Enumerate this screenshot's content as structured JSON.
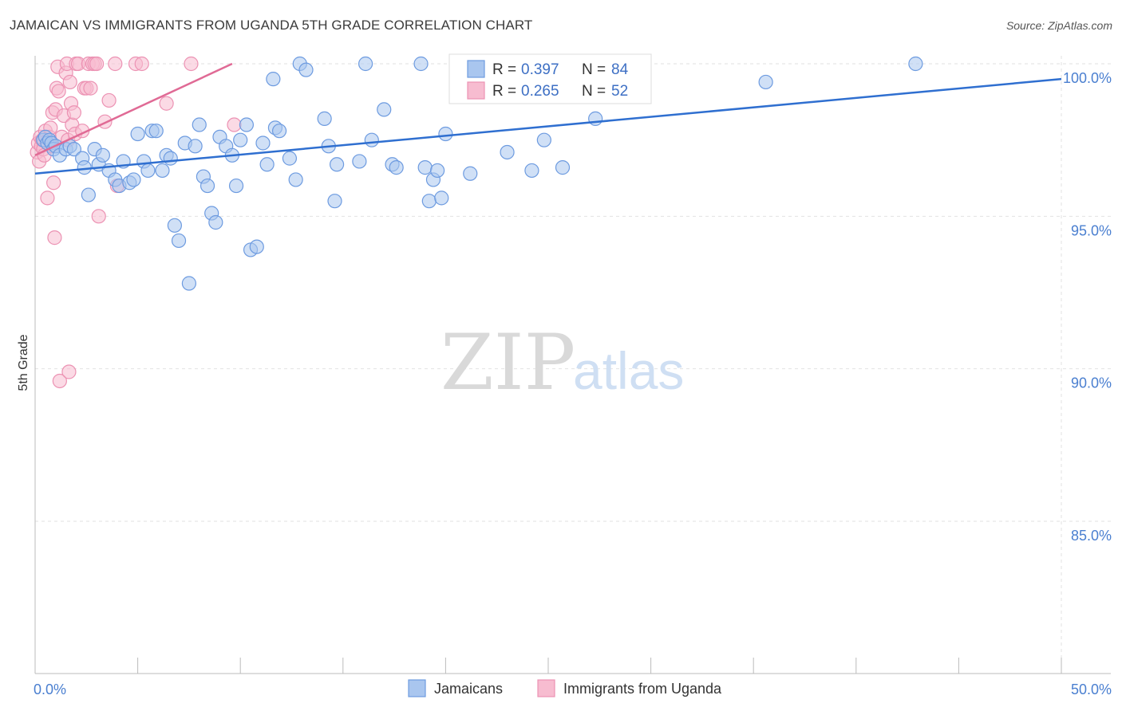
{
  "title": "JAMAICAN VS IMMIGRANTS FROM UGANDA 5TH GRADE CORRELATION CHART",
  "source": "Source: ZipAtlas.com",
  "watermark": {
    "zip": "ZIP",
    "atlas": "atlas"
  },
  "legend": {
    "r_label": "R =",
    "n_label": "N =",
    "series": [
      {
        "r": "0.397",
        "n": "84"
      },
      {
        "r": "0.265",
        "n": "52"
      }
    ]
  },
  "bottom_legend": [
    "Jamaicans",
    "Immigrants from Uganda"
  ],
  "chart_data": {
    "type": "scatter",
    "title": "JAMAICAN VS IMMIGRANTS FROM UGANDA 5TH GRADE CORRELATION CHART",
    "xlabel": "",
    "ylabel": "5th Grade",
    "xlim": [
      0,
      50
    ],
    "ylim": [
      80.5,
      100.5
    ],
    "x_tick_labels": [
      {
        "value": 0,
        "label": "0.0%"
      },
      {
        "value": 50,
        "label": "50.0%"
      }
    ],
    "x_minor_ticks": [
      0,
      5,
      10,
      15,
      20,
      25,
      30,
      35,
      40,
      45,
      50
    ],
    "y_ticks": [
      {
        "value": 100,
        "label": "100.0%"
      },
      {
        "value": 95,
        "label": "95.0%"
      },
      {
        "value": 90,
        "label": "90.0%"
      },
      {
        "value": 85,
        "label": "85.0%"
      }
    ],
    "grid": true,
    "colors": {
      "jamaicans_fill": "#a9c6ef",
      "jamaicans_stroke": "#6d9be0",
      "jamaicans_line": "#2f6fd0",
      "uganda_fill": "#f7bcd0",
      "uganda_stroke": "#ec92b3",
      "uganda_line": "#e06a95",
      "tick_label": "#4a7fd0",
      "grid": "#e2e2e2"
    },
    "series": [
      {
        "name": "Jamaicans",
        "r": 0.397,
        "n": 84,
        "trend": {
          "x": [
            0,
            50
          ],
          "y": [
            96.4,
            99.5
          ]
        },
        "points": [
          [
            0.4,
            97.5
          ],
          [
            0.5,
            97.6
          ],
          [
            0.6,
            97.4
          ],
          [
            0.7,
            97.5
          ],
          [
            0.8,
            97.4
          ],
          [
            0.9,
            97.2
          ],
          [
            1.0,
            97.3
          ],
          [
            1.2,
            97.0
          ],
          [
            1.5,
            97.2
          ],
          [
            1.7,
            97.3
          ],
          [
            1.9,
            97.2
          ],
          [
            2.3,
            96.9
          ],
          [
            2.4,
            96.6
          ],
          [
            2.6,
            95.7
          ],
          [
            2.9,
            97.2
          ],
          [
            3.1,
            96.7
          ],
          [
            3.3,
            97.0
          ],
          [
            3.6,
            96.5
          ],
          [
            3.9,
            96.2
          ],
          [
            4.1,
            96.0
          ],
          [
            4.3,
            96.8
          ],
          [
            4.6,
            96.1
          ],
          [
            4.8,
            96.2
          ],
          [
            5.0,
            97.7
          ],
          [
            5.3,
            96.8
          ],
          [
            5.5,
            96.5
          ],
          [
            5.7,
            97.8
          ],
          [
            5.9,
            97.8
          ],
          [
            6.2,
            96.5
          ],
          [
            6.4,
            97.0
          ],
          [
            6.6,
            96.9
          ],
          [
            6.8,
            94.7
          ],
          [
            7.0,
            94.2
          ],
          [
            7.3,
            97.4
          ],
          [
            7.5,
            92.8
          ],
          [
            7.8,
            97.3
          ],
          [
            8.0,
            98.0
          ],
          [
            8.2,
            96.3
          ],
          [
            8.4,
            96.0
          ],
          [
            8.6,
            95.1
          ],
          [
            8.8,
            94.8
          ],
          [
            9.0,
            97.6
          ],
          [
            9.3,
            97.3
          ],
          [
            9.6,
            97.0
          ],
          [
            9.8,
            96.0
          ],
          [
            10.0,
            97.5
          ],
          [
            10.3,
            98.0
          ],
          [
            10.5,
            93.9
          ],
          [
            10.8,
            94.0
          ],
          [
            11.1,
            97.4
          ],
          [
            11.3,
            96.7
          ],
          [
            11.6,
            99.5
          ],
          [
            11.7,
            97.9
          ],
          [
            11.9,
            97.8
          ],
          [
            12.4,
            96.9
          ],
          [
            12.7,
            96.2
          ],
          [
            12.9,
            100.0
          ],
          [
            13.2,
            99.8
          ],
          [
            14.1,
            98.2
          ],
          [
            14.3,
            97.3
          ],
          [
            14.6,
            95.5
          ],
          [
            14.7,
            96.7
          ],
          [
            15.8,
            96.8
          ],
          [
            16.1,
            100.0
          ],
          [
            16.4,
            97.5
          ],
          [
            17.0,
            98.5
          ],
          [
            17.4,
            96.7
          ],
          [
            17.6,
            96.6
          ],
          [
            18.8,
            100.0
          ],
          [
            19.0,
            96.6
          ],
          [
            19.2,
            95.5
          ],
          [
            19.4,
            96.2
          ],
          [
            19.6,
            96.5
          ],
          [
            19.8,
            95.6
          ],
          [
            20.0,
            97.7
          ],
          [
            21.2,
            96.4
          ],
          [
            23.0,
            97.1
          ],
          [
            24.2,
            96.5
          ],
          [
            24.8,
            97.5
          ],
          [
            25.7,
            96.6
          ],
          [
            26.4,
            100.0
          ],
          [
            27.3,
            98.2
          ],
          [
            35.6,
            99.4
          ],
          [
            42.9,
            100.0
          ]
        ]
      },
      {
        "name": "Immigrants from Uganda",
        "r": 0.265,
        "n": 52,
        "trend": {
          "x": [
            0,
            9.6
          ],
          "y": [
            97.0,
            100.0
          ]
        },
        "points": [
          [
            0.1,
            97.1
          ],
          [
            0.15,
            97.4
          ],
          [
            0.2,
            96.8
          ],
          [
            0.25,
            97.6
          ],
          [
            0.3,
            97.3
          ],
          [
            0.35,
            97.5
          ],
          [
            0.4,
            97.2
          ],
          [
            0.45,
            97.0
          ],
          [
            0.5,
            97.8
          ],
          [
            0.6,
            95.6
          ],
          [
            0.7,
            97.6
          ],
          [
            0.75,
            97.9
          ],
          [
            0.8,
            97.3
          ],
          [
            0.85,
            98.4
          ],
          [
            0.9,
            96.1
          ],
          [
            0.95,
            94.3
          ],
          [
            1.0,
            98.5
          ],
          [
            1.05,
            99.2
          ],
          [
            1.1,
            99.9
          ],
          [
            1.15,
            99.1
          ],
          [
            1.2,
            89.6
          ],
          [
            1.3,
            97.6
          ],
          [
            1.4,
            98.3
          ],
          [
            1.5,
            99.7
          ],
          [
            1.55,
            100.0
          ],
          [
            1.6,
            97.5
          ],
          [
            1.65,
            89.9
          ],
          [
            1.7,
            99.4
          ],
          [
            1.75,
            98.7
          ],
          [
            1.8,
            98.0
          ],
          [
            1.9,
            98.4
          ],
          [
            1.95,
            97.7
          ],
          [
            2.0,
            100.0
          ],
          [
            2.1,
            100.0
          ],
          [
            2.3,
            97.8
          ],
          [
            2.4,
            99.2
          ],
          [
            2.5,
            99.2
          ],
          [
            2.6,
            100.0
          ],
          [
            2.7,
            99.2
          ],
          [
            2.8,
            100.0
          ],
          [
            2.9,
            100.0
          ],
          [
            3.0,
            100.0
          ],
          [
            3.1,
            95.0
          ],
          [
            3.4,
            98.1
          ],
          [
            3.6,
            98.8
          ],
          [
            3.9,
            100.0
          ],
          [
            4.0,
            96.0
          ],
          [
            4.9,
            100.0
          ],
          [
            5.2,
            100.0
          ],
          [
            6.4,
            98.7
          ],
          [
            7.6,
            100.0
          ],
          [
            9.7,
            98.0
          ]
        ]
      }
    ]
  }
}
